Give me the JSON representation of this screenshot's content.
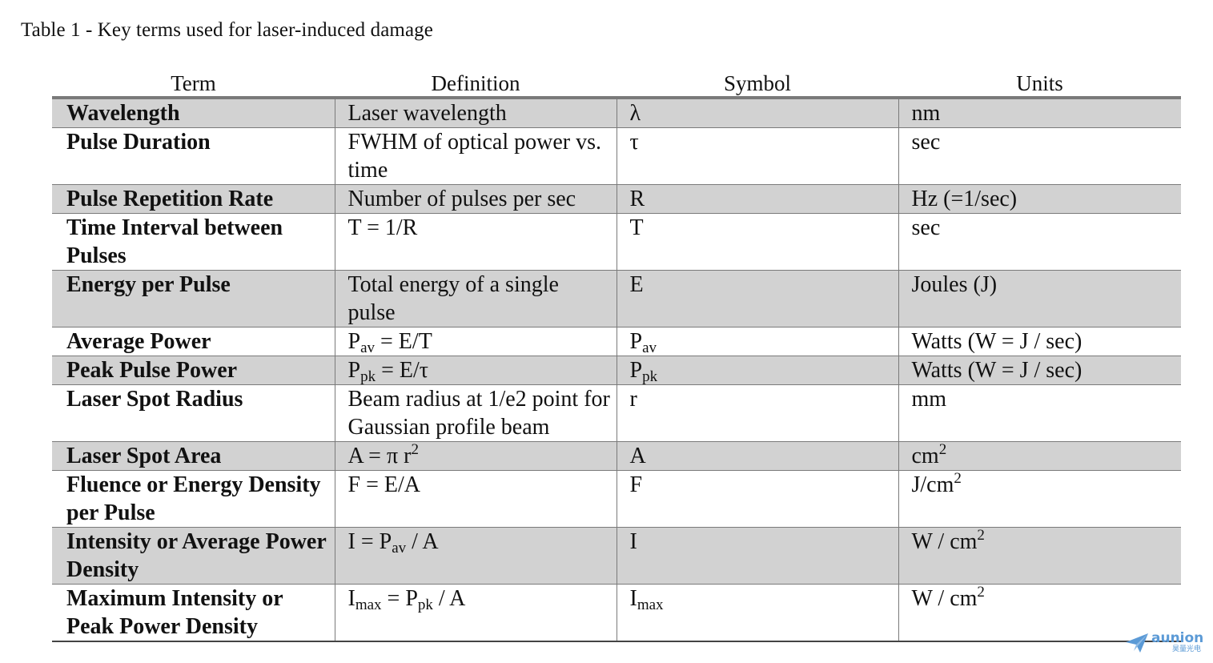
{
  "caption": "Table 1 - Key terms used for laser-induced damage",
  "table": {
    "headers": [
      "Term",
      "Definition",
      "Symbol",
      "Units"
    ],
    "rows": [
      {
        "term": "Wavelength",
        "definition": "Laser wavelength",
        "symbol": "λ",
        "units": "nm"
      },
      {
        "term": "Pulse Duration",
        "definition": "FWHM of optical power vs. time",
        "symbol": "τ",
        "units": "sec"
      },
      {
        "term": "Pulse Repetition Rate",
        "definition": "Number of pulses per sec",
        "symbol": "R",
        "units": "Hz (=1/sec)"
      },
      {
        "term": "Time Interval between Pulses",
        "definition": "T = 1/R",
        "symbol": "T",
        "units": "sec"
      },
      {
        "term": "Energy per Pulse",
        "definition": "Total energy of a single pulse",
        "symbol": "E",
        "units": "Joules (J)"
      },
      {
        "term": "Average Power",
        "definition_parts": {
          "base": "P",
          "sub": "av",
          "rest": " = E/T"
        },
        "symbol_parts": {
          "base": "P",
          "sub": "av"
        },
        "units": "Watts (W = J / sec)"
      },
      {
        "term": "Peak Pulse Power",
        "definition_parts": {
          "base": "P",
          "sub": "pk",
          "rest": " = E/τ"
        },
        "symbol_parts": {
          "base": "P",
          "sub": "pk"
        },
        "units": "Watts (W = J / sec)"
      },
      {
        "term": "Laser Spot Radius",
        "definition": "Beam radius at 1/e2 point for Gaussian profile beam",
        "symbol": "r",
        "units": "mm"
      },
      {
        "term": "Laser Spot Area",
        "definition_parts": {
          "base": "A = π r",
          "sup": "2"
        },
        "symbol": "A",
        "units_parts": {
          "base": "cm",
          "sup": "2"
        }
      },
      {
        "term": "Fluence or Energy Density per Pulse",
        "definition": "F = E/A",
        "symbol": "F",
        "units_parts": {
          "base": "J/cm",
          "sup": "2"
        }
      },
      {
        "term": "Intensity or Average Power Density",
        "definition_parts": {
          "base": "I = P",
          "sub": "av",
          "rest": " / A"
        },
        "symbol": "I",
        "units_parts": {
          "base": "W / cm",
          "sup": "2"
        }
      },
      {
        "term": "Maximum Intensity or Peak Power Density",
        "definition_parts": {
          "base": "I",
          "sub": "max",
          "mid": " = P",
          "sub2": "pk",
          "rest": " / A"
        },
        "symbol_parts": {
          "base": "I",
          "sub": "max"
        },
        "units_parts": {
          "base": "W / cm",
          "sup": "2"
        }
      }
    ]
  },
  "watermark": {
    "word": "aunion",
    "sub": "昊量光电",
    "color": "#5b9ad6",
    "icon": "paper-plane-icon"
  }
}
